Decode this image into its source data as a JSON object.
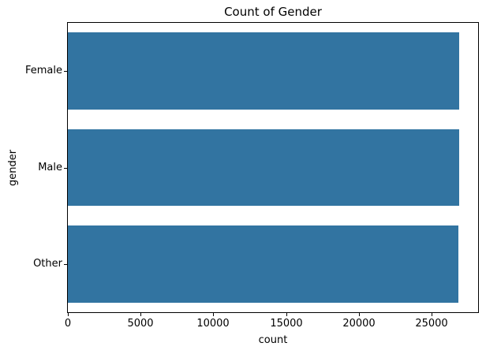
{
  "figure": {
    "background_color": "#ffffff"
  },
  "chart_data": {
    "type": "bar",
    "orientation": "horizontal",
    "title": "Count of Gender",
    "xlabel": "count",
    "ylabel": "gender",
    "categories": [
      "Female",
      "Male",
      "Other"
    ],
    "values": [
      26900,
      26900,
      26850
    ],
    "xlim": [
      0,
      28200
    ],
    "xticks": [
      0,
      5000,
      10000,
      15000,
      20000,
      25000
    ],
    "xtick_labels": [
      "0",
      "5000",
      "10000",
      "15000",
      "20000",
      "25000"
    ],
    "bar_color": "#3274a1",
    "bar_height_fraction": 0.8,
    "grid": false,
    "legend_visible": false
  }
}
